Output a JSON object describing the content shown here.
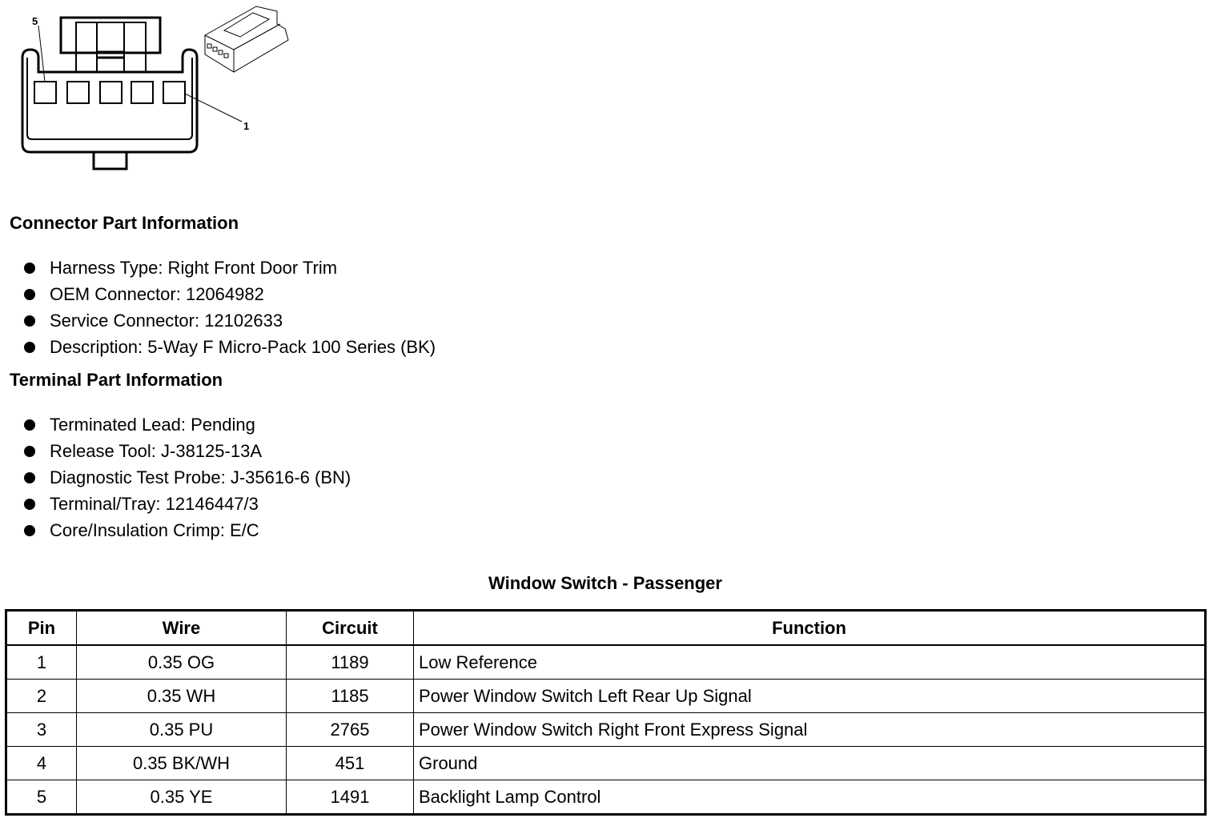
{
  "diagram": {
    "pin_label_left": "5",
    "pin_label_right": "1"
  },
  "connector_heading": "Connector Part Information",
  "connector_items": [
    "Harness Type: Right Front Door Trim",
    "OEM Connector: 12064982",
    "Service Connector: 12102633",
    "Description: 5-Way F Micro-Pack 100 Series (BK)"
  ],
  "terminal_heading": "Terminal Part Information",
  "terminal_items": [
    "Terminated Lead: Pending",
    "Release Tool: J-38125-13A",
    "Diagnostic Test Probe: J-35616-6 (BN)",
    "Terminal/Tray: 12146447/3",
    "Core/Insulation Crimp: E/C"
  ],
  "table": {
    "title": "Window Switch - Passenger",
    "headers": [
      "Pin",
      "Wire",
      "Circuit",
      "Function"
    ],
    "rows": [
      [
        "1",
        "0.35 OG",
        "1189",
        "Low Reference"
      ],
      [
        "2",
        "0.35 WH",
        "1185",
        "Power Window Switch Left Rear Up Signal"
      ],
      [
        "3",
        "0.35 PU",
        "2765",
        "Power Window Switch Right Front Express Signal"
      ],
      [
        "4",
        "0.35 BK/WH",
        "451",
        "Ground"
      ],
      [
        "5",
        "0.35 YE",
        "1491",
        "Backlight Lamp Control"
      ]
    ]
  }
}
